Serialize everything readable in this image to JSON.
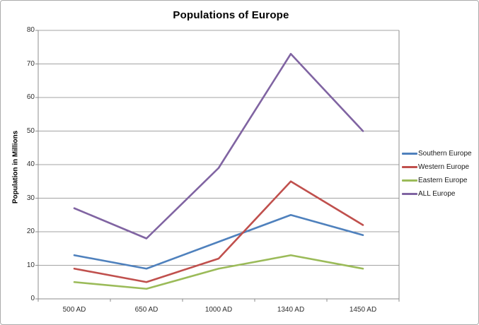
{
  "chart_data": {
    "type": "line",
    "title": "Populations of Europe",
    "ylabel": "Population in Millions",
    "categories": [
      "500 AD",
      "650 AD",
      "1000 AD",
      "1340 AD",
      "1450 AD"
    ],
    "series": [
      {
        "name": "Southern Europe",
        "color": "#4F81BD",
        "values": [
          13,
          9,
          17,
          25,
          19
        ]
      },
      {
        "name": "Western Europe",
        "color": "#C0504D",
        "values": [
          9,
          5,
          12,
          35,
          22
        ]
      },
      {
        "name": "Eastern Europe",
        "color": "#9BBB59",
        "values": [
          5,
          3,
          9,
          13,
          9
        ]
      },
      {
        "name": "ALL Europe",
        "color": "#8064A2",
        "values": [
          27,
          18,
          39,
          73,
          50
        ]
      }
    ],
    "ylim": [
      0,
      80
    ],
    "yticks": [
      0,
      10,
      20,
      30,
      40,
      50,
      60,
      70,
      80
    ],
    "grid": true,
    "legend_position": "right",
    "grid_color": "#a3a3a3",
    "axis_color": "#8c8c8c"
  }
}
